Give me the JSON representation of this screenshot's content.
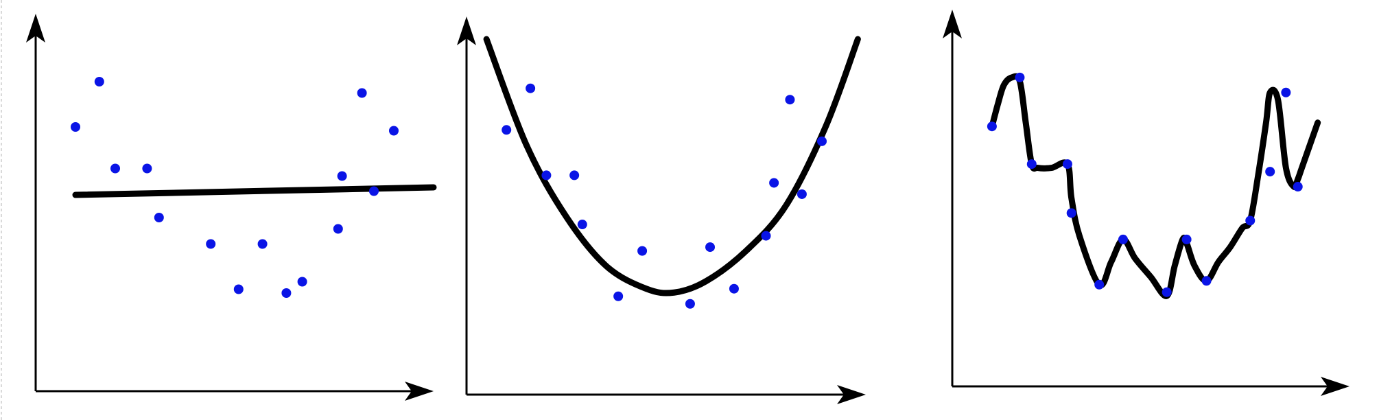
{
  "colors": {
    "background": "#ffffff",
    "axis": "#000000",
    "fit_line": "#000000",
    "points": "#0a14e6"
  },
  "chart_data": [
    {
      "type": "scatter",
      "fit": "linear",
      "title": "",
      "xlabel": "",
      "ylabel": "",
      "xlim": [
        0,
        100
      ],
      "ylim": [
        0,
        100
      ],
      "points": {
        "x": [
          10,
          16,
          20,
          28,
          31,
          44,
          51,
          57,
          63,
          67,
          76,
          77,
          82,
          85,
          90
        ],
        "y": [
          70,
          82,
          59,
          59,
          46,
          39,
          27,
          39,
          26,
          29,
          43,
          57,
          79,
          53,
          69
        ]
      },
      "curve": {
        "x": [
          10,
          100
        ],
        "y": [
          52,
          54
        ]
      }
    },
    {
      "type": "scatter",
      "fit": "quadratic",
      "title": "",
      "xlabel": "",
      "ylabel": "",
      "xlim": [
        0,
        100
      ],
      "ylim": [
        0,
        100
      ],
      "points": {
        "x": [
          10,
          16,
          20,
          27,
          29,
          38,
          44,
          56,
          61,
          67,
          75,
          77,
          81,
          84,
          89
        ],
        "y": [
          70,
          81,
          58,
          58,
          45,
          26,
          38,
          24,
          39,
          28,
          42,
          56,
          78,
          53,
          67
        ]
      },
      "curve": {
        "x": [
          5,
          15,
          25,
          35,
          45,
          52,
          60,
          70,
          80,
          90,
          98
        ],
        "y": [
          94,
          66,
          47,
          34,
          28,
          27,
          30,
          38,
          50,
          71,
          94
        ]
      }
    },
    {
      "type": "scatter",
      "fit": "overfit",
      "title": "",
      "xlabel": "",
      "ylabel": "",
      "xlim": [
        0,
        100
      ],
      "ylim": [
        0,
        100
      ],
      "points": {
        "x": [
          10,
          17,
          20,
          29,
          30,
          37,
          43,
          54,
          59,
          64,
          75,
          80,
          84,
          87
        ],
        "y": [
          69,
          82,
          59,
          59,
          46,
          27,
          39,
          25,
          39,
          28,
          44,
          57,
          78,
          53
        ]
      },
      "curve": {
        "x": [
          10,
          11.5,
          13,
          15,
          17,
          18.5,
          20,
          21.5,
          25,
          29,
          30,
          32,
          37,
          40,
          43,
          46,
          50,
          54,
          56,
          58,
          59,
          61,
          64,
          67,
          70,
          73,
          75,
          77,
          79,
          80,
          82,
          84,
          86,
          87,
          88,
          90,
          92
        ],
        "y": [
          69,
          75,
          80,
          82,
          81,
          70,
          59,
          58,
          58,
          59,
          50,
          40,
          27,
          33,
          39,
          34,
          29,
          24,
          32,
          39,
          38,
          32,
          28,
          33,
          37,
          42,
          44,
          56,
          70,
          78,
          76,
          58,
          53,
          55,
          58,
          64,
          70
        ]
      }
    }
  ]
}
